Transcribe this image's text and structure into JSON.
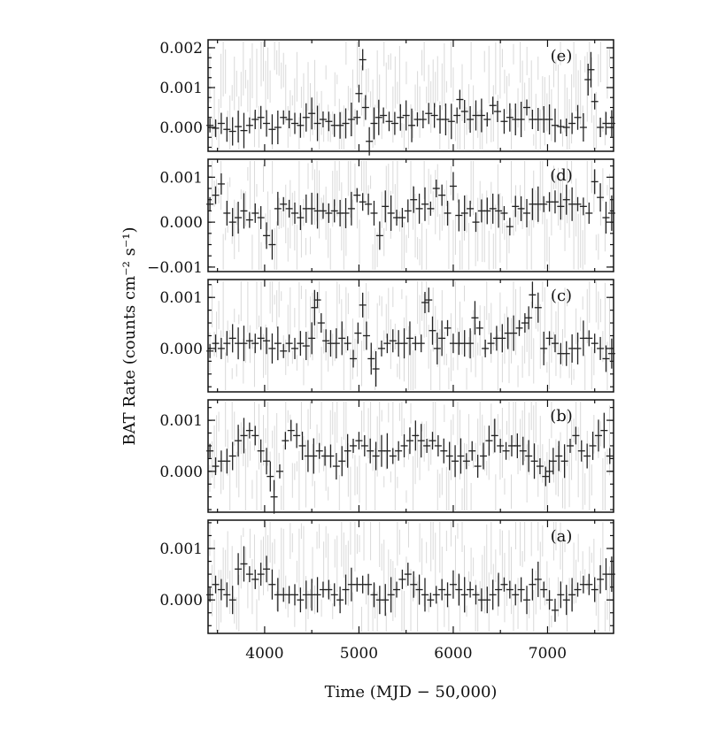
{
  "chart_data": {
    "type": "scatter",
    "xlabel": "Time (MJD − 50,000)",
    "ylabel": "BAT Rate (counts cm⁻² s⁻¹)",
    "xlim": [
      3400,
      7700
    ],
    "xticks": [
      4000,
      5000,
      6000,
      7000
    ],
    "xtick_labels": [
      "4000",
      "5000",
      "6000",
      "7000"
    ],
    "grid": false,
    "panels": [
      {
        "label": "(e)",
        "ylim": [
          -0.0006,
          0.0022
        ],
        "yticks": [
          0.0,
          0.001,
          0.002
        ],
        "ytick_labels": [
          "0.000",
          "0.001",
          "0.002"
        ],
        "x": [
          3420,
          3480,
          3540,
          3600,
          3660,
          3720,
          3780,
          3840,
          3900,
          3960,
          4020,
          4080,
          4140,
          4200,
          4260,
          4320,
          4380,
          4440,
          4500,
          4560,
          4620,
          4680,
          4740,
          4800,
          4860,
          4920,
          4980,
          5000,
          5040,
          5070,
          5110,
          5160,
          5210,
          5260,
          5320,
          5380,
          5440,
          5500,
          5560,
          5620,
          5680,
          5740,
          5800,
          5860,
          5920,
          5980,
          6040,
          6070,
          6120,
          6180,
          6240,
          6300,
          6360,
          6420,
          6470,
          6540,
          6600,
          6660,
          6720,
          6780,
          6840,
          6900,
          6960,
          7020,
          7080,
          7140,
          7200,
          7260,
          7320,
          7380,
          7430,
          7460,
          7500,
          7560,
          7620,
          7680
        ],
        "y": [
          5e-05,
          -2e-05,
          0.0001,
          -5e-05,
          -0.0001,
          2e-05,
          -8e-05,
          5e-05,
          0.0002,
          0.00025,
          0.0001,
          -5e-05,
          0.0,
          0.00025,
          0.0002,
          0.0001,
          5e-05,
          0.00025,
          0.00035,
          0.0001,
          0.0002,
          0.00015,
          5e-05,
          5e-05,
          0.0001,
          0.0002,
          0.00025,
          0.00085,
          0.0017,
          0.0005,
          -0.00035,
          0.0001,
          0.00025,
          0.0003,
          0.00015,
          0.0001,
          0.00025,
          0.0003,
          5e-05,
          0.0002,
          0.0002,
          0.00035,
          0.0003,
          0.0002,
          0.0002,
          0.00015,
          0.0003,
          0.0007,
          0.0004,
          0.0002,
          0.0003,
          0.0003,
          0.0002,
          0.00055,
          0.0004,
          0.00015,
          0.00025,
          0.0002,
          0.0002,
          0.0005,
          0.0002,
          0.0002,
          0.0002,
          0.0002,
          5e-05,
          2e-05,
          0.0,
          0.0001,
          0.00025,
          0.0,
          0.0012,
          0.00145,
          0.00065,
          0.0,
          0.0001,
          0.0001
        ]
      },
      {
        "label": "(d)",
        "ylim": [
          -0.0011,
          0.0014
        ],
        "yticks": [
          -0.001,
          0.0,
          0.001
        ],
        "ytick_labels": [
          "−0.001",
          "0.000",
          "0.001"
        ],
        "x": [
          3420,
          3480,
          3540,
          3600,
          3660,
          3720,
          3780,
          3840,
          3900,
          3960,
          4020,
          4080,
          4140,
          4200,
          4260,
          4320,
          4380,
          4440,
          4500,
          4560,
          4620,
          4680,
          4740,
          4800,
          4860,
          4920,
          4980,
          5040,
          5100,
          5160,
          5220,
          5280,
          5340,
          5400,
          5460,
          5520,
          5580,
          5640,
          5700,
          5760,
          5820,
          5880,
          5940,
          6000,
          6060,
          6120,
          6180,
          6240,
          6300,
          6360,
          6420,
          6480,
          6540,
          6600,
          6660,
          6720,
          6780,
          6840,
          6900,
          6960,
          7020,
          7080,
          7140,
          7200,
          7260,
          7320,
          7380,
          7440,
          7500,
          7560,
          7620,
          7680
        ],
        "y": [
          0.0004,
          0.0006,
          0.00085,
          0.0002,
          0.0,
          0.0001,
          0.00025,
          5e-05,
          0.0002,
          0.0001,
          -0.0003,
          -0.0005,
          0.0003,
          0.0004,
          0.0003,
          0.0002,
          0.0001,
          0.0003,
          0.0003,
          0.00025,
          0.00025,
          0.0002,
          0.00025,
          0.0002,
          0.0002,
          0.0003,
          0.0006,
          0.00045,
          0.0004,
          0.0002,
          -0.0003,
          0.00035,
          0.0002,
          0.0001,
          0.0001,
          0.00025,
          0.0005,
          0.0003,
          0.0004,
          0.0003,
          0.00075,
          0.0006,
          0.0002,
          0.0008,
          0.00015,
          0.0002,
          0.0003,
          0.0,
          0.00025,
          0.00025,
          0.0003,
          0.00025,
          0.0002,
          -0.0001,
          0.00035,
          0.0003,
          0.0002,
          0.0004,
          0.0004,
          0.0004,
          0.00045,
          0.00045,
          0.00035,
          0.0005,
          0.0004,
          0.0004,
          0.00035,
          0.0002,
          0.0009,
          0.00055,
          0.0001,
          0.0002
        ]
      },
      {
        "label": "(c)",
        "ylim": [
          -0.00085,
          0.00135
        ],
        "yticks": [
          0.0,
          0.001
        ],
        "ytick_labels": [
          "0.000",
          "0.001"
        ],
        "x": [
          3420,
          3480,
          3540,
          3600,
          3660,
          3720,
          3780,
          3840,
          3900,
          3960,
          4020,
          4080,
          4140,
          4200,
          4260,
          4320,
          4380,
          4440,
          4500,
          4530,
          4560,
          4600,
          4650,
          4700,
          4760,
          4820,
          4880,
          4940,
          4990,
          5040,
          5080,
          5130,
          5180,
          5240,
          5300,
          5360,
          5420,
          5480,
          5540,
          5600,
          5660,
          5700,
          5740,
          5780,
          5830,
          5880,
          5940,
          6000,
          6060,
          6120,
          6180,
          6230,
          6280,
          6340,
          6400,
          6460,
          6520,
          6580,
          6640,
          6700,
          6760,
          6800,
          6840,
          6900,
          6960,
          7020,
          7080,
          7140,
          7200,
          7260,
          7320,
          7380,
          7440,
          7500,
          7560,
          7620,
          7680
        ],
        "y": [
          -5e-05,
          0.0001,
          0.0,
          0.0001,
          0.0002,
          0.0001,
          0.0001,
          0.00015,
          0.0001,
          0.0002,
          0.00015,
          0.0,
          0.0001,
          -5e-05,
          0.0001,
          0.0,
          0.0001,
          5e-05,
          0.0002,
          0.0008,
          0.00095,
          0.0005,
          0.00015,
          0.0001,
          0.0001,
          0.0002,
          0.0001,
          -0.0002,
          0.0003,
          0.00085,
          0.00025,
          -0.0002,
          -0.0004,
          0.0,
          0.0001,
          0.00015,
          0.0001,
          0.0001,
          0.0002,
          0.0001,
          0.0001,
          0.0009,
          0.00095,
          0.00035,
          0.0,
          0.0002,
          0.0004,
          0.0001,
          0.0001,
          0.0001,
          0.0001,
          0.0006,
          0.0004,
          0.0,
          0.0001,
          0.0002,
          0.0002,
          0.0003,
          0.0003,
          0.0004,
          0.0005,
          0.0006,
          0.00105,
          0.0008,
          0.0,
          0.0002,
          0.0001,
          -0.0001,
          -0.0001,
          0.0,
          0.0,
          0.0002,
          0.0002,
          0.0001,
          0.0,
          -0.0002,
          -0.0001
        ]
      },
      {
        "label": "(b)",
        "ylim": [
          -0.0008,
          0.0014
        ],
        "yticks": [
          0.0,
          0.001
        ],
        "ytick_labels": [
          "0.000",
          "0.001"
        ],
        "x": [
          3420,
          3480,
          3540,
          3600,
          3660,
          3720,
          3780,
          3840,
          3900,
          3960,
          4020,
          4060,
          4100,
          4160,
          4220,
          4280,
          4340,
          4400,
          4460,
          4520,
          4580,
          4640,
          4700,
          4760,
          4820,
          4880,
          4940,
          5000,
          5060,
          5120,
          5180,
          5240,
          5300,
          5360,
          5420,
          5480,
          5540,
          5600,
          5660,
          5720,
          5780,
          5840,
          5900,
          5960,
          6020,
          6080,
          6140,
          6200,
          6260,
          6320,
          6380,
          6440,
          6500,
          6560,
          6620,
          6680,
          6740,
          6800,
          6860,
          6920,
          6980,
          7020,
          7060,
          7120,
          7180,
          7240,
          7300,
          7360,
          7420,
          7480,
          7540,
          7600,
          7660
        ],
        "y": [
          0.0004,
          0.0001,
          0.0002,
          0.0002,
          0.0003,
          0.0006,
          0.0007,
          0.0008,
          0.0007,
          0.0004,
          0.0002,
          -0.0001,
          -0.0005,
          0.0,
          0.0006,
          0.0008,
          0.0007,
          0.0005,
          0.0003,
          0.0003,
          0.0004,
          0.0003,
          0.0003,
          0.0001,
          0.0002,
          0.0004,
          0.0005,
          0.0006,
          0.0005,
          0.0004,
          0.0003,
          0.0004,
          0.0004,
          0.0003,
          0.0004,
          0.0005,
          0.0006,
          0.0007,
          0.0006,
          0.0005,
          0.0006,
          0.0005,
          0.0004,
          0.0003,
          0.0002,
          0.0003,
          0.0002,
          0.0004,
          0.0001,
          0.0003,
          0.0006,
          0.0007,
          0.0005,
          0.0004,
          0.0005,
          0.0005,
          0.0004,
          0.0003,
          0.0002,
          0.0001,
          -0.0001,
          0.0,
          0.0002,
          0.0003,
          0.0002,
          0.0005,
          0.0007,
          0.0004,
          0.0003,
          0.0005,
          0.0007,
          0.0008,
          0.0003
        ]
      },
      {
        "label": "(a)",
        "ylim": [
          -0.00065,
          0.00155
        ],
        "yticks": [
          0.0,
          0.001
        ],
        "ytick_labels": [
          "0.000",
          "0.001"
        ],
        "x": [
          3420,
          3480,
          3540,
          3600,
          3660,
          3720,
          3780,
          3840,
          3900,
          3960,
          4020,
          4080,
          4140,
          4200,
          4260,
          4320,
          4380,
          4440,
          4500,
          4560,
          4620,
          4680,
          4740,
          4800,
          4860,
          4920,
          4980,
          5040,
          5100,
          5160,
          5220,
          5280,
          5340,
          5400,
          5460,
          5520,
          5580,
          5640,
          5700,
          5760,
          5820,
          5880,
          5940,
          6000,
          6060,
          6120,
          6180,
          6240,
          6300,
          6360,
          6420,
          6480,
          6540,
          6600,
          6660,
          6720,
          6780,
          6840,
          6900,
          6960,
          7020,
          7080,
          7140,
          7200,
          7260,
          7320,
          7380,
          7440,
          7500,
          7560,
          7620,
          7680
        ],
        "y": [
          0.0001,
          0.0003,
          0.0002,
          0.0001,
          0.0,
          0.0006,
          0.0007,
          0.0005,
          0.0004,
          0.0005,
          0.0006,
          0.0003,
          0.0001,
          0.0001,
          0.0001,
          0.0001,
          0.0,
          0.0001,
          0.0001,
          0.0001,
          0.0002,
          0.0002,
          0.0001,
          0.0,
          0.0002,
          0.0003,
          0.0003,
          0.0003,
          0.0003,
          0.0001,
          0.0,
          0.0,
          0.0001,
          0.0002,
          0.0004,
          0.0005,
          0.0003,
          0.0002,
          0.0001,
          0.0,
          0.0001,
          0.0002,
          0.0001,
          0.0003,
          0.0002,
          0.0001,
          0.0002,
          0.0001,
          0.0,
          0.0,
          0.0001,
          0.0002,
          0.0003,
          0.0002,
          0.0001,
          0.0002,
          0.0,
          0.0003,
          0.0004,
          0.0002,
          0.0,
          -0.0002,
          0.0001,
          0.0,
          0.0001,
          0.0002,
          0.0003,
          0.0003,
          0.0002,
          0.0004,
          0.0005,
          0.0005
        ]
      }
    ]
  }
}
